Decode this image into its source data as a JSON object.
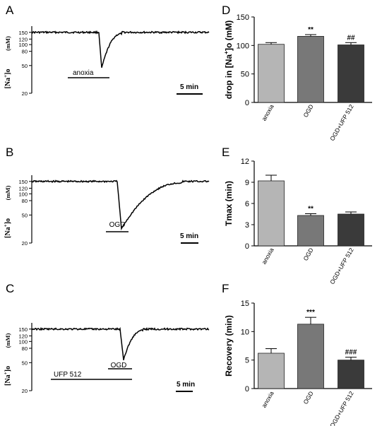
{
  "chart_data": [
    {
      "panel": "A",
      "type": "line",
      "ylabel_prefix": "[Na",
      "ylabel_sup": "+",
      "ylabel_suffix": "]o",
      "ylabel_unit": "(mM)",
      "yscale": "log",
      "ylim": [
        20,
        160
      ],
      "yticks": [
        "150",
        "120",
        "100",
        "80",
        "50",
        "20"
      ],
      "ytick_values": [
        150,
        120,
        100,
        80,
        50,
        20
      ],
      "baseline": 150,
      "min_value": 46,
      "bars": [
        {
          "label": "anoxia"
        }
      ],
      "scale_bar": "5 min"
    },
    {
      "panel": "B",
      "type": "line",
      "ylabel_prefix": "[Na",
      "ylabel_sup": "+",
      "ylabel_suffix": "]o",
      "ylabel_unit": "(mM)",
      "yscale": "log",
      "ylim": [
        20,
        160
      ],
      "yticks": [
        "150",
        "120",
        "100",
        "80",
        "50",
        "20"
      ],
      "ytick_values": [
        150,
        120,
        100,
        80,
        50,
        20
      ],
      "baseline": 150,
      "min_value": 32,
      "bars": [
        {
          "label": "OGD"
        }
      ],
      "scale_bar": "5 min"
    },
    {
      "panel": "C",
      "type": "line",
      "ylabel_prefix": "[Na",
      "ylabel_sup": "+",
      "ylabel_suffix": "]o",
      "ylabel_unit": "(mM)",
      "yscale": "log",
      "ylim": [
        20,
        160
      ],
      "yticks": [
        "150",
        "120",
        "100",
        "80",
        "50",
        "20"
      ],
      "ytick_values": [
        150,
        120,
        100,
        80,
        50,
        20
      ],
      "baseline": 150,
      "min_value": 55,
      "bars": [
        {
          "label": "OGD"
        },
        {
          "label": "UFP 512"
        }
      ],
      "scale_bar": "5 min"
    },
    {
      "panel": "D",
      "type": "bar",
      "ylabel_prefix": "drop in [Na",
      "ylabel_sup": "+",
      "ylabel_suffix": "]o (mM)",
      "ylim": [
        0,
        150
      ],
      "yticks": [
        0,
        50,
        100,
        150
      ],
      "categories": [
        "anoxia",
        "OGD",
        "OGD+UFP 512"
      ],
      "values": [
        102,
        116,
        101
      ],
      "errors": [
        3,
        3,
        4
      ],
      "annotations": [
        "",
        "**",
        "##"
      ],
      "colors": [
        "#b5b5b5",
        "#787878",
        "#3a3a3a"
      ]
    },
    {
      "panel": "E",
      "type": "bar",
      "ylabel_prefix": "Tmax (min)",
      "ylabel_sup": "",
      "ylabel_suffix": "",
      "ylim": [
        0,
        12
      ],
      "yticks": [
        0,
        3,
        6,
        9,
        12
      ],
      "categories": [
        "anoxia",
        "OGD",
        "OGD+UFP 512"
      ],
      "values": [
        9.2,
        4.3,
        4.5
      ],
      "errors": [
        0.8,
        0.25,
        0.3
      ],
      "annotations": [
        "",
        "**",
        ""
      ],
      "colors": [
        "#b5b5b5",
        "#787878",
        "#3a3a3a"
      ]
    },
    {
      "panel": "F",
      "type": "bar",
      "ylabel_prefix": "Recovery (min)",
      "ylabel_sup": "",
      "ylabel_suffix": "",
      "ylim": [
        0,
        15
      ],
      "yticks": [
        0,
        5,
        10,
        15
      ],
      "categories": [
        "anoxia",
        "OGD",
        "OGD+UFP 512"
      ],
      "values": [
        6.2,
        11.3,
        5.0
      ],
      "errors": [
        0.8,
        1.2,
        0.5
      ],
      "annotations": [
        "",
        "***",
        "###"
      ],
      "colors": [
        "#b5b5b5",
        "#787878",
        "#3a3a3a"
      ]
    }
  ]
}
